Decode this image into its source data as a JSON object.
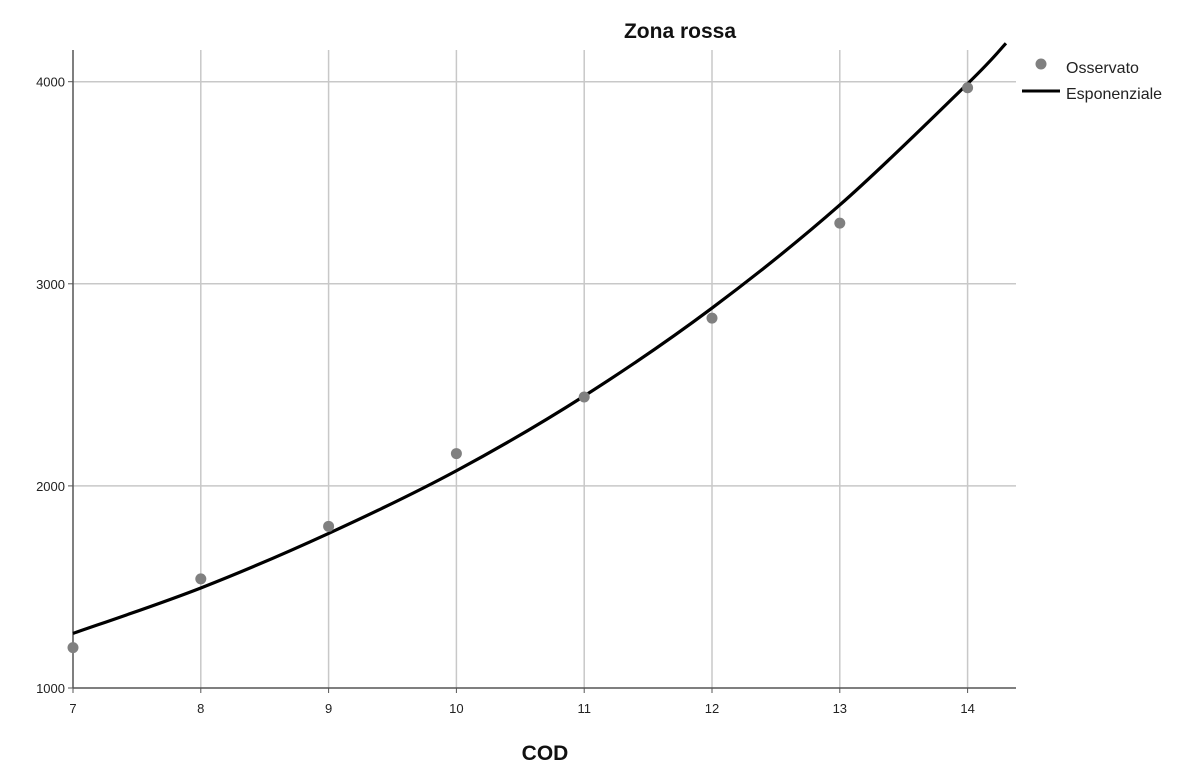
{
  "chart_data": {
    "type": "scatter",
    "title": "Zona rossa",
    "xlabel": "COD",
    "ylabel": "",
    "xlim": [
      7,
      14.3
    ],
    "ylim": [
      1000,
      4160
    ],
    "x_ticks": [
      "7",
      "8",
      "9",
      "10",
      "11",
      "12",
      "13",
      "14"
    ],
    "y_ticks": [
      "1000",
      "2000",
      "3000",
      "4000"
    ],
    "grid": true,
    "legend_position": "top-right",
    "series": [
      {
        "name": "Osservato",
        "kind": "points",
        "color": "#808080",
        "x": [
          7,
          8,
          9,
          10,
          11,
          12,
          13,
          14
        ],
        "y": [
          1200,
          1540,
          1800,
          2160,
          2440,
          2830,
          3300,
          3970
        ]
      },
      {
        "name": "Esponenziale",
        "kind": "curve",
        "color": "#000000",
        "x": [
          7,
          8,
          9,
          10,
          11,
          12,
          13,
          14,
          14.3
        ],
        "y": [
          1270,
          1495,
          1765,
          2075,
          2445,
          2880,
          3390,
          3990,
          4190
        ]
      }
    ]
  }
}
